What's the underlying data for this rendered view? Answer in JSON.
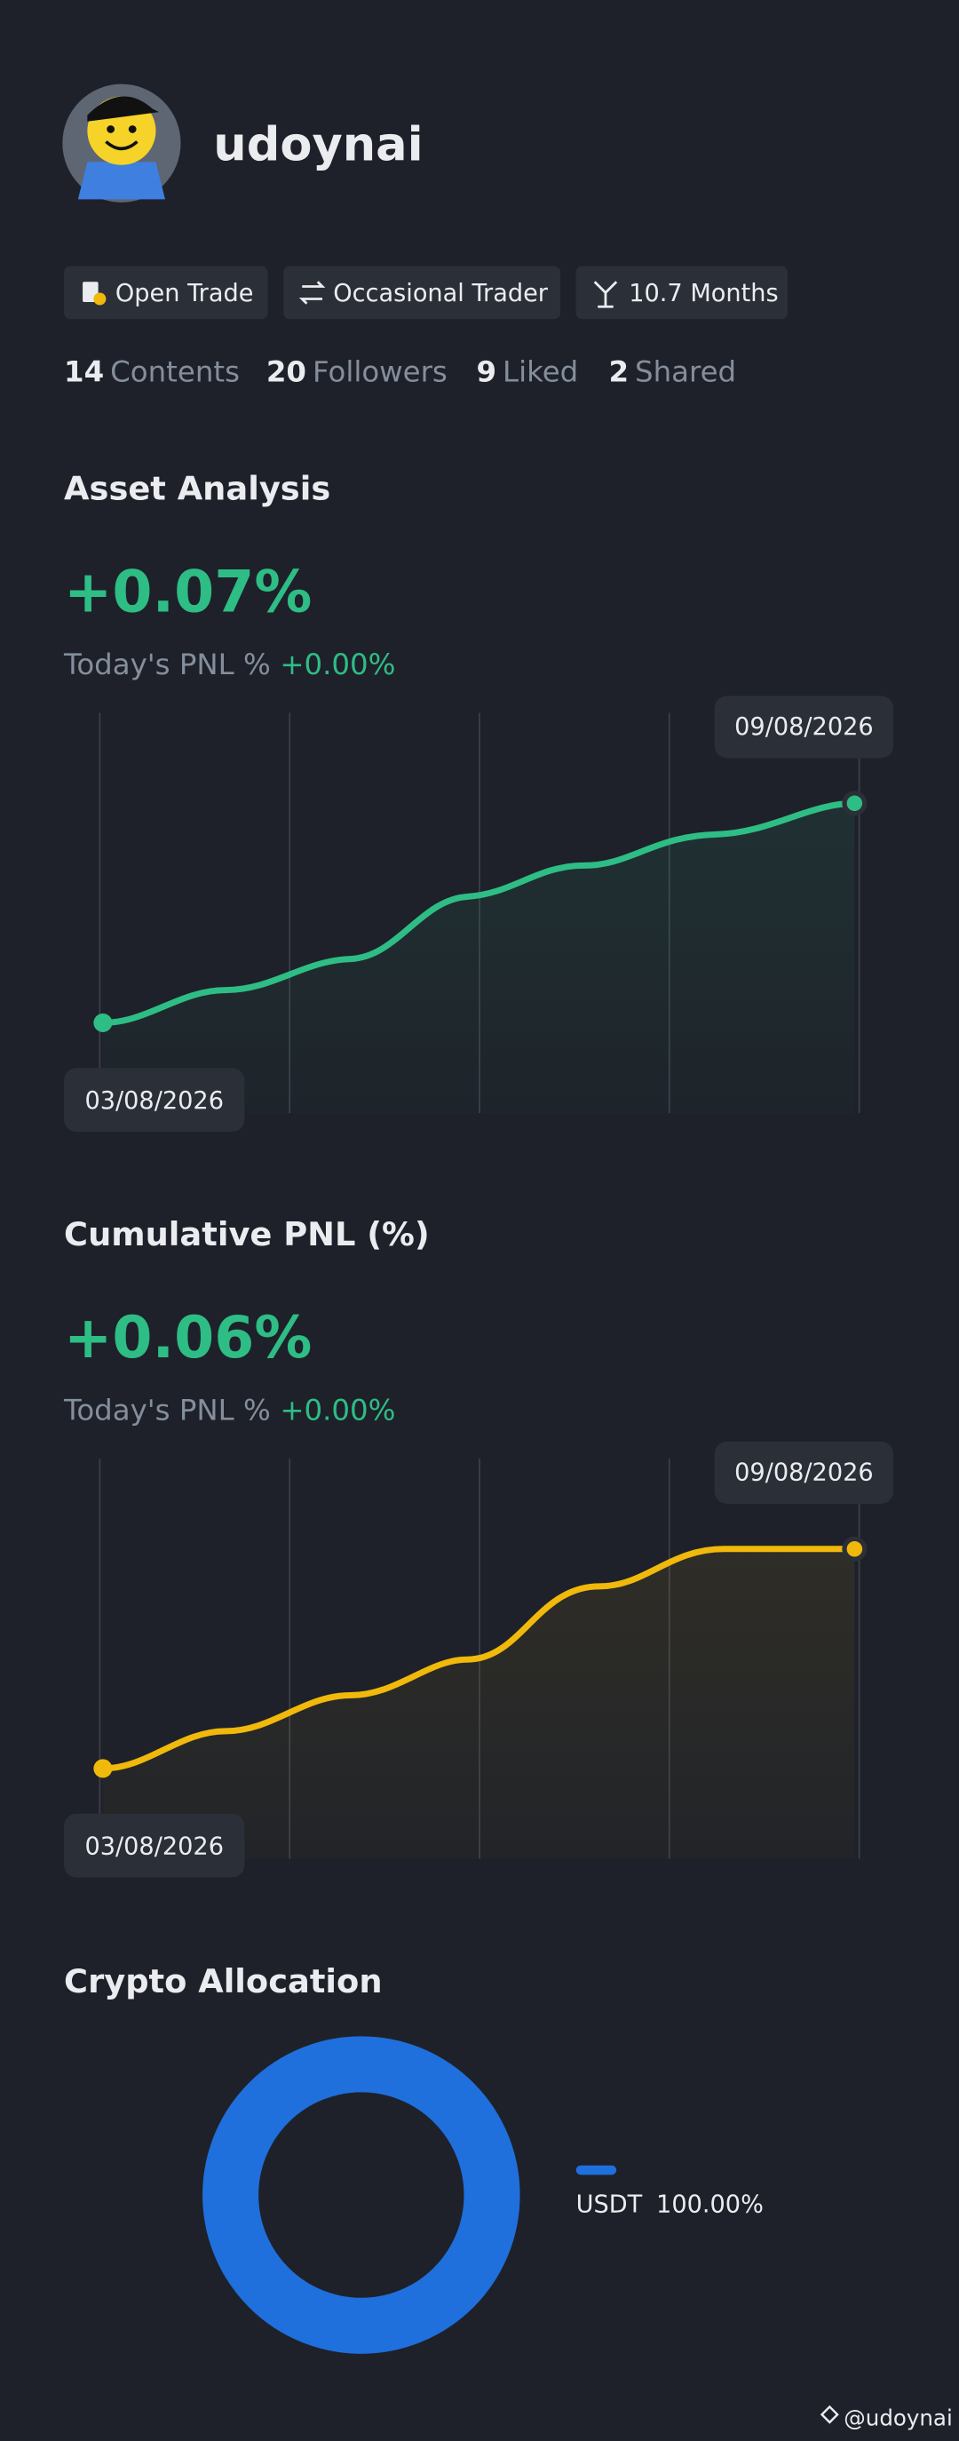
{
  "profile": {
    "name": "udoynai",
    "tags": [
      "Open Trade",
      "Occasional Trader",
      "10.7 Months"
    ],
    "stats": [
      {
        "value": 14,
        "label": "Contents"
      },
      {
        "value": 20,
        "label": "Followers"
      },
      {
        "value": 9,
        "label": "Liked"
      },
      {
        "value": 2,
        "label": "Shared"
      }
    ]
  },
  "sections": [
    {
      "title": "Asset Analysis",
      "value": "+0.07%",
      "today_label": "Today's PNL %",
      "today_value": "+0.00%",
      "start_date": "03/08/2026",
      "end_date": "09/08/2026"
    },
    {
      "title": "Cumulative PNL (%)",
      "value": "+0.06%",
      "today_label": "Today's PNL %",
      "today_value": "+0.00%",
      "start_date": "03/08/2026",
      "end_date": "09/08/2026"
    }
  ],
  "allocation": {
    "title": "Crypto Allocation",
    "items": [
      {
        "name": "USDT",
        "value": 100,
        "label": "100.00%"
      }
    ]
  },
  "watermark": "@udoynai"
}
